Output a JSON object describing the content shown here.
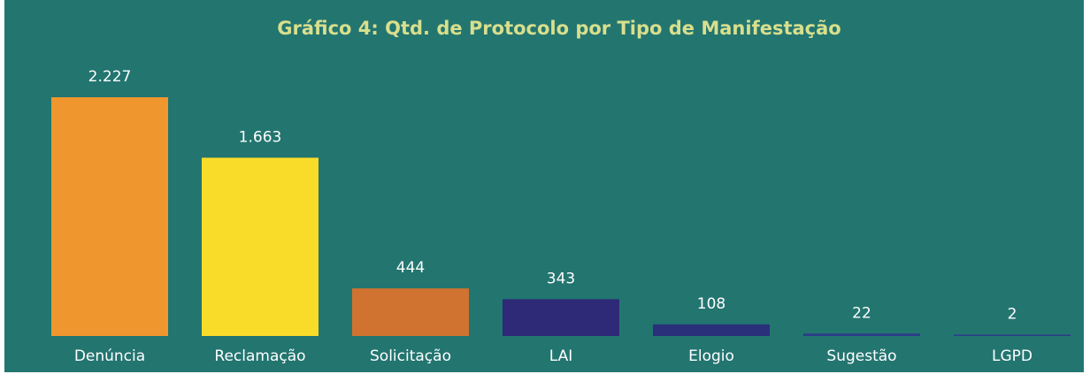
{
  "chart_data": {
    "type": "bar",
    "title": "Gráfico 4: Qtd. de Protocolo por Tipo de Manifestação",
    "categories": [
      "Denúncia",
      "Reclamação",
      "Solicitação",
      "LAI",
      "Elogio",
      "Sugestão",
      "LGPD"
    ],
    "values": [
      2227,
      1663,
      444,
      343,
      108,
      22,
      2
    ],
    "value_labels": [
      "2.227",
      "1.663",
      "444",
      "343",
      "108",
      "22",
      "2"
    ],
    "colors": [
      "#f0962e",
      "#f9dc2a",
      "#d07330",
      "#2e2a78",
      "#2a2f7a",
      "#2b3b8a",
      "#2b3b8a"
    ]
  }
}
